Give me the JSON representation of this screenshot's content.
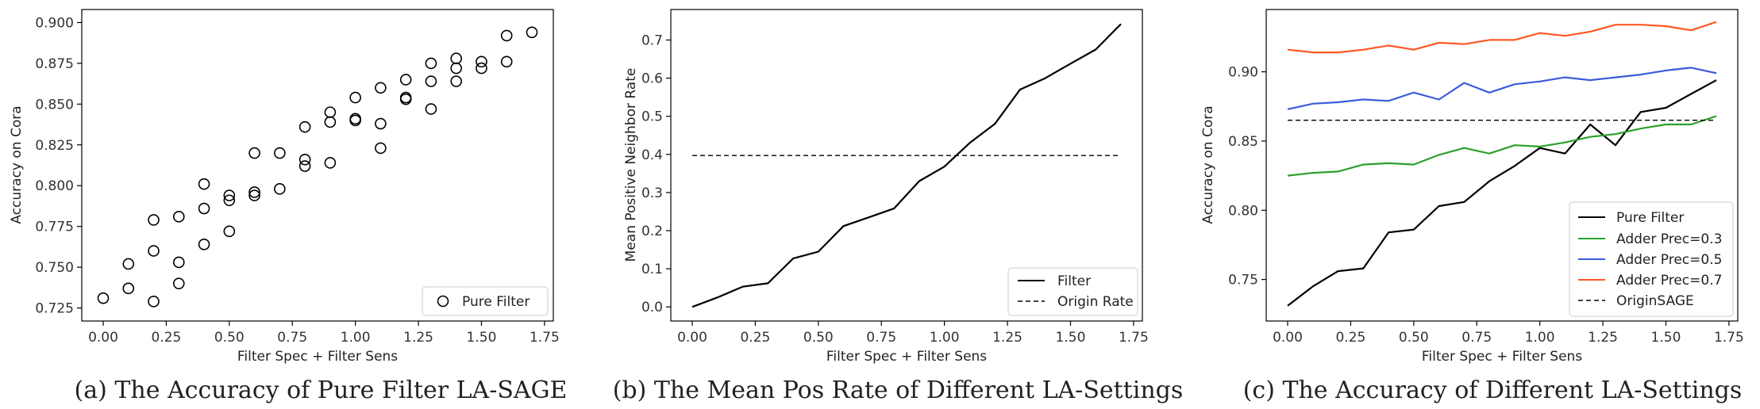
{
  "chart_data": [
    {
      "id": "a",
      "type": "scatter",
      "caption": "(a) The Accuracy of Pure Filter LA-SAGE",
      "xlabel": "Filter Spec + Filter Sens",
      "ylabel": "Accuracy on Cora",
      "xlim": [
        -0.085,
        1.785
      ],
      "ylim": [
        0.717,
        0.908
      ],
      "xticks": [
        0.0,
        0.25,
        0.5,
        0.75,
        1.0,
        1.25,
        1.5,
        1.75
      ],
      "xtick_labels": [
        "0.00",
        "0.25",
        "0.50",
        "0.75",
        "1.00",
        "1.25",
        "1.50",
        "1.75"
      ],
      "yticks": [
        0.725,
        0.75,
        0.775,
        0.8,
        0.825,
        0.85,
        0.875,
        0.9
      ],
      "ytick_labels": [
        "0.725",
        "0.750",
        "0.775",
        "0.800",
        "0.825",
        "0.850",
        "0.875",
        "0.900"
      ],
      "legend": {
        "position": "lower-right",
        "entries": [
          "Pure Filter"
        ]
      },
      "series": [
        {
          "name": "Pure Filter",
          "marker": "open-circle",
          "color": "#000000",
          "points": [
            [
              0.0,
              0.731
            ],
            [
              0.1,
              0.737
            ],
            [
              0.1,
              0.752
            ],
            [
              0.2,
              0.729
            ],
            [
              0.2,
              0.76
            ],
            [
              0.2,
              0.779
            ],
            [
              0.3,
              0.74
            ],
            [
              0.3,
              0.753
            ],
            [
              0.3,
              0.781
            ],
            [
              0.4,
              0.764
            ],
            [
              0.4,
              0.786
            ],
            [
              0.4,
              0.801
            ],
            [
              0.5,
              0.772
            ],
            [
              0.5,
              0.791
            ],
            [
              0.5,
              0.794
            ],
            [
              0.6,
              0.794
            ],
            [
              0.6,
              0.796
            ],
            [
              0.6,
              0.82
            ],
            [
              0.7,
              0.798
            ],
            [
              0.7,
              0.82
            ],
            [
              0.8,
              0.812
            ],
            [
              0.8,
              0.816
            ],
            [
              0.8,
              0.836
            ],
            [
              0.9,
              0.814
            ],
            [
              0.9,
              0.839
            ],
            [
              0.9,
              0.845
            ],
            [
              1.0,
              0.84
            ],
            [
              1.0,
              0.841
            ],
            [
              1.0,
              0.854
            ],
            [
              1.1,
              0.823
            ],
            [
              1.1,
              0.838
            ],
            [
              1.1,
              0.86
            ],
            [
              1.2,
              0.853
            ],
            [
              1.2,
              0.854
            ],
            [
              1.2,
              0.865
            ],
            [
              1.3,
              0.847
            ],
            [
              1.3,
              0.864
            ],
            [
              1.3,
              0.875
            ],
            [
              1.4,
              0.864
            ],
            [
              1.4,
              0.872
            ],
            [
              1.4,
              0.878
            ],
            [
              1.5,
              0.872
            ],
            [
              1.5,
              0.876
            ],
            [
              1.6,
              0.876
            ],
            [
              1.6,
              0.892
            ],
            [
              1.7,
              0.894
            ]
          ]
        }
      ]
    },
    {
      "id": "b",
      "type": "line",
      "caption": "(b) The Mean Pos Rate of Different LA-Settings",
      "xlabel": "Filter Spec + Filter Sens",
      "ylabel": "Mean Positive Neighbor Rate",
      "xlim": [
        -0.085,
        1.785
      ],
      "ylim": [
        -0.037,
        0.78
      ],
      "xticks": [
        0.0,
        0.25,
        0.5,
        0.75,
        1.0,
        1.25,
        1.5,
        1.75
      ],
      "xtick_labels": [
        "0.00",
        "0.25",
        "0.50",
        "0.75",
        "1.00",
        "1.25",
        "1.50",
        "1.75"
      ],
      "yticks": [
        0.0,
        0.1,
        0.2,
        0.3,
        0.4,
        0.5,
        0.6,
        0.7
      ],
      "ytick_labels": [
        "0.0",
        "0.1",
        "0.2",
        "0.3",
        "0.4",
        "0.5",
        "0.6",
        "0.7"
      ],
      "legend": {
        "position": "lower-right",
        "entries": [
          "Filter",
          "Origin Rate"
        ]
      },
      "series": [
        {
          "name": "Filter",
          "style": "solid",
          "color": "#000000",
          "x": [
            0.0,
            0.1,
            0.2,
            0.3,
            0.4,
            0.5,
            0.6,
            0.7,
            0.8,
            0.9,
            1.0,
            1.1,
            1.2,
            1.3,
            1.4,
            1.5,
            1.6,
            1.7
          ],
          "y": [
            0.0,
            0.025,
            0.053,
            0.062,
            0.127,
            0.145,
            0.212,
            0.235,
            0.258,
            0.33,
            0.368,
            0.43,
            0.48,
            0.57,
            0.6,
            0.638,
            0.675,
            0.742
          ]
        },
        {
          "name": "Origin Rate",
          "style": "dashed",
          "color": "#000000",
          "x": [
            0.0,
            1.7
          ],
          "y": [
            0.397,
            0.397
          ]
        }
      ]
    },
    {
      "id": "c",
      "type": "line",
      "caption": "(c) The Accuracy of Different LA-Settings",
      "xlabel": "Filter Spec + Filter Sens",
      "ylabel": "Accuracy on Cora",
      "xlim": [
        -0.085,
        1.785
      ],
      "ylim": [
        0.72,
        0.945
      ],
      "xticks": [
        0.0,
        0.25,
        0.5,
        0.75,
        1.0,
        1.25,
        1.5,
        1.75
      ],
      "xtick_labels": [
        "0.00",
        "0.25",
        "0.50",
        "0.75",
        "1.00",
        "1.25",
        "1.50",
        "1.75"
      ],
      "yticks": [
        0.75,
        0.8,
        0.85,
        0.9
      ],
      "ytick_labels": [
        "0.75",
        "0.80",
        "0.85",
        "0.90"
      ],
      "legend": {
        "position": "lower-right",
        "entries": [
          "Pure Filter",
          "Adder Prec=0.3",
          "Adder Prec=0.5",
          "Adder Prec=0.7",
          "OriginSAGE"
        ]
      },
      "series": [
        {
          "name": "Pure Filter",
          "style": "solid",
          "color": "#000000",
          "x": [
            0.0,
            0.1,
            0.2,
            0.3,
            0.4,
            0.5,
            0.6,
            0.7,
            0.8,
            0.9,
            1.0,
            1.1,
            1.2,
            1.3,
            1.4,
            1.5,
            1.6,
            1.7
          ],
          "y": [
            0.731,
            0.745,
            0.756,
            0.758,
            0.784,
            0.786,
            0.803,
            0.806,
            0.821,
            0.832,
            0.845,
            0.841,
            0.862,
            0.847,
            0.871,
            0.874,
            0.884,
            0.894
          ]
        },
        {
          "name": "Adder Prec=0.3",
          "style": "solid",
          "color": "#2ca02c",
          "x": [
            0.0,
            0.1,
            0.2,
            0.3,
            0.4,
            0.5,
            0.6,
            0.7,
            0.8,
            0.9,
            1.0,
            1.1,
            1.2,
            1.3,
            1.4,
            1.5,
            1.6,
            1.7
          ],
          "y": [
            0.825,
            0.827,
            0.828,
            0.833,
            0.834,
            0.833,
            0.84,
            0.845,
            0.841,
            0.847,
            0.846,
            0.849,
            0.853,
            0.855,
            0.859,
            0.862,
            0.862,
            0.868
          ]
        },
        {
          "name": "Adder Prec=0.5",
          "style": "solid",
          "color": "#3b5bdb",
          "x": [
            0.0,
            0.1,
            0.2,
            0.3,
            0.4,
            0.5,
            0.6,
            0.7,
            0.8,
            0.9,
            1.0,
            1.1,
            1.2,
            1.3,
            1.4,
            1.5,
            1.6,
            1.7
          ],
          "y": [
            0.873,
            0.877,
            0.878,
            0.88,
            0.879,
            0.885,
            0.88,
            0.892,
            0.885,
            0.891,
            0.893,
            0.896,
            0.894,
            0.896,
            0.898,
            0.901,
            0.903,
            0.899
          ]
        },
        {
          "name": "Adder Prec=0.7",
          "style": "solid",
          "color": "#ff5722",
          "x": [
            0.0,
            0.1,
            0.2,
            0.3,
            0.4,
            0.5,
            0.6,
            0.7,
            0.8,
            0.9,
            1.0,
            1.1,
            1.2,
            1.3,
            1.4,
            1.5,
            1.6,
            1.7
          ],
          "y": [
            0.916,
            0.914,
            0.914,
            0.916,
            0.919,
            0.916,
            0.921,
            0.92,
            0.923,
            0.923,
            0.928,
            0.926,
            0.929,
            0.934,
            0.934,
            0.933,
            0.93,
            0.936
          ]
        },
        {
          "name": "OriginSAGE",
          "style": "dashed",
          "color": "#000000",
          "x": [
            0.0,
            1.7
          ],
          "y": [
            0.865,
            0.865
          ]
        }
      ]
    }
  ]
}
